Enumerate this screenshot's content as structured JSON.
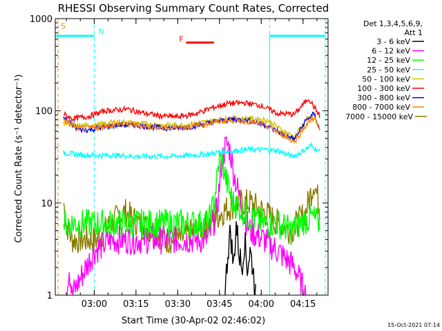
{
  "chart_data": {
    "type": "line",
    "title": "RHESSI Observing Summary Count Rates, Corrected",
    "xlabel": "Start Time (30-Apr-02 02:46:02)",
    "ylabel": "Corrected Count Rate (s⁻¹ detector⁻¹)",
    "y_scale": "log",
    "ylim": [
      1,
      1000
    ],
    "x_range_minutes": [
      0,
      98
    ],
    "x_ticks": [
      {
        "t": 14,
        "label": "03:00"
      },
      {
        "t": 29,
        "label": "03:15"
      },
      {
        "t": 44,
        "label": "03:30"
      },
      {
        "t": 59,
        "label": "03:45"
      },
      {
        "t": 74,
        "label": "04:00"
      },
      {
        "t": 89,
        "label": "04:15"
      }
    ],
    "y_ticks": [
      {
        "v": 1,
        "label": "1"
      },
      {
        "v": 10,
        "label": "10"
      },
      {
        "v": 100,
        "label": "100"
      },
      {
        "v": 1000,
        "label": "1000"
      }
    ],
    "legend_header": [
      "Det 1,3,4,5,6,9,",
      "Att 1"
    ],
    "legend_position": "right",
    "series": [
      {
        "name": "3 - 6 keV",
        "color": "#000000",
        "points": [
          [
            61,
            1
          ],
          [
            62,
            3
          ],
          [
            63,
            5
          ],
          [
            64,
            2
          ],
          [
            65,
            6
          ],
          [
            66,
            3
          ],
          [
            67,
            2
          ],
          [
            68,
            4
          ],
          [
            69,
            2
          ],
          [
            70,
            3
          ],
          [
            71,
            2
          ],
          [
            72,
            1
          ]
        ]
      },
      {
        "name": "6 - 12 keV",
        "color": "#ff00ff",
        "points": [
          [
            4,
            1
          ],
          [
            5,
            2
          ],
          [
            6,
            1
          ],
          [
            14,
            3
          ],
          [
            20,
            4
          ],
          [
            30,
            4
          ],
          [
            40,
            4
          ],
          [
            50,
            4
          ],
          [
            55,
            4
          ],
          [
            58,
            8
          ],
          [
            60,
            30
          ],
          [
            61,
            40
          ],
          [
            62,
            43
          ],
          [
            63,
            35
          ],
          [
            64,
            22
          ],
          [
            66,
            12
          ],
          [
            68,
            7
          ],
          [
            70,
            5
          ],
          [
            75,
            4
          ],
          [
            80,
            3
          ],
          [
            86,
            2
          ],
          [
            90,
            1
          ]
        ]
      },
      {
        "name": "12 - 25 keV",
        "color": "#00ff00",
        "points": [
          [
            3,
            6
          ],
          [
            10,
            6
          ],
          [
            20,
            6
          ],
          [
            30,
            6
          ],
          [
            40,
            6
          ],
          [
            50,
            6
          ],
          [
            55,
            6
          ],
          [
            57,
            10
          ],
          [
            59,
            30
          ],
          [
            60,
            27
          ],
          [
            61,
            20
          ],
          [
            62,
            15
          ],
          [
            64,
            10
          ],
          [
            66,
            9
          ],
          [
            70,
            7
          ],
          [
            75,
            6
          ],
          [
            80,
            6
          ],
          [
            85,
            5
          ],
          [
            88,
            6
          ],
          [
            92,
            7
          ],
          [
            95,
            6
          ]
        ]
      },
      {
        "name": "25 - 50 keV",
        "color": "#00ffff",
        "points": [
          [
            3,
            35
          ],
          [
            10,
            33
          ],
          [
            20,
            33
          ],
          [
            30,
            32
          ],
          [
            40,
            32
          ],
          [
            50,
            33
          ],
          [
            55,
            34
          ],
          [
            60,
            36
          ],
          [
            65,
            37
          ],
          [
            70,
            38
          ],
          [
            75,
            38
          ],
          [
            80,
            37
          ],
          [
            85,
            32
          ],
          [
            88,
            35
          ],
          [
            92,
            42
          ],
          [
            95,
            36
          ]
        ]
      },
      {
        "name": "50 - 100 keV",
        "color": "#d4c000",
        "points": [
          [
            3,
            75
          ],
          [
            8,
            68
          ],
          [
            15,
            70
          ],
          [
            22,
            76
          ],
          [
            30,
            73
          ],
          [
            38,
            70
          ],
          [
            46,
            70
          ],
          [
            52,
            74
          ],
          [
            58,
            80
          ],
          [
            64,
            83
          ],
          [
            70,
            82
          ],
          [
            76,
            80
          ],
          [
            82,
            60
          ],
          [
            86,
            52
          ],
          [
            90,
            80
          ],
          [
            93,
            88
          ],
          [
            95,
            64
          ]
        ]
      },
      {
        "name": "100 - 300 keV",
        "color": "#ff0000",
        "points": [
          [
            3,
            92
          ],
          [
            6,
            82
          ],
          [
            12,
            87
          ],
          [
            18,
            100
          ],
          [
            26,
            104
          ],
          [
            32,
            94
          ],
          [
            38,
            88
          ],
          [
            44,
            86
          ],
          [
            50,
            92
          ],
          [
            56,
            107
          ],
          [
            62,
            120
          ],
          [
            68,
            122
          ],
          [
            74,
            114
          ],
          [
            80,
            93
          ],
          [
            86,
            92
          ],
          [
            91,
            137
          ],
          [
            95,
            88
          ]
        ]
      },
      {
        "name": "300 - 800 keV",
        "color": "#0000ff",
        "points": [
          [
            3,
            84
          ],
          [
            8,
            63
          ],
          [
            12,
            62
          ],
          [
            16,
            65
          ],
          [
            22,
            70
          ],
          [
            28,
            70
          ],
          [
            34,
            67
          ],
          [
            40,
            65
          ],
          [
            46,
            65
          ],
          [
            52,
            70
          ],
          [
            58,
            77
          ],
          [
            64,
            81
          ],
          [
            70,
            78
          ],
          [
            76,
            69
          ],
          [
            82,
            55
          ],
          [
            86,
            49
          ],
          [
            90,
            78
          ],
          [
            93,
            93
          ],
          [
            95,
            62
          ]
        ]
      },
      {
        "name": "800 - 7000 keV",
        "color": "#ff8000",
        "points": [
          [
            3,
            80
          ],
          [
            8,
            64
          ],
          [
            15,
            66
          ],
          [
            22,
            71
          ],
          [
            28,
            71
          ],
          [
            34,
            67
          ],
          [
            40,
            65
          ],
          [
            46,
            66
          ],
          [
            52,
            70
          ],
          [
            58,
            76
          ],
          [
            64,
            79
          ],
          [
            70,
            76
          ],
          [
            76,
            68
          ],
          [
            82,
            54
          ],
          [
            86,
            46
          ],
          [
            90,
            70
          ],
          [
            93,
            85
          ],
          [
            95,
            60
          ]
        ]
      },
      {
        "name": "7000 - 15000 keV",
        "color": "#8b7a00",
        "points": [
          [
            3,
            10
          ],
          [
            4,
            6
          ],
          [
            6,
            4
          ],
          [
            10,
            4
          ],
          [
            15,
            4
          ],
          [
            20,
            6
          ],
          [
            25,
            8
          ],
          [
            30,
            6
          ],
          [
            35,
            5
          ],
          [
            40,
            4
          ],
          [
            45,
            4
          ],
          [
            50,
            5
          ],
          [
            55,
            6
          ],
          [
            60,
            8
          ],
          [
            65,
            10
          ],
          [
            70,
            10
          ],
          [
            75,
            8
          ],
          [
            80,
            6
          ],
          [
            85,
            5
          ],
          [
            90,
            8
          ],
          [
            93,
            17
          ],
          [
            95,
            9
          ]
        ]
      }
    ],
    "vertical_markers": [
      {
        "t": 1,
        "color": "#ff8000"
      },
      {
        "t": 14,
        "color": "#00ffff"
      },
      {
        "t": 77,
        "color": "#00ffff"
      },
      {
        "t": 97,
        "color": "#00ffff"
      }
    ],
    "horizontal_bars": [
      {
        "label": "N",
        "color": "#00ffff",
        "t0": 0,
        "t1": 14,
        "v": 650
      },
      {
        "label": "N",
        "color": "#00ffff",
        "t0": 77,
        "t1": 97,
        "v": 650
      },
      {
        "label": "F",
        "color": "#ff0000",
        "t0": 47,
        "t1": 57,
        "v": 550
      }
    ],
    "flag_labels": [
      {
        "text": "S",
        "color": "#ff8000",
        "t": 2,
        "v": 780
      },
      {
        "text": "N",
        "color": "#00ffff",
        "t": 15.5,
        "v": 680
      },
      {
        "text": "F",
        "color": "#ff0000",
        "t": 44.5,
        "v": 560
      }
    ]
  },
  "footer_timestamp": "15-Oct-2021 07:14"
}
